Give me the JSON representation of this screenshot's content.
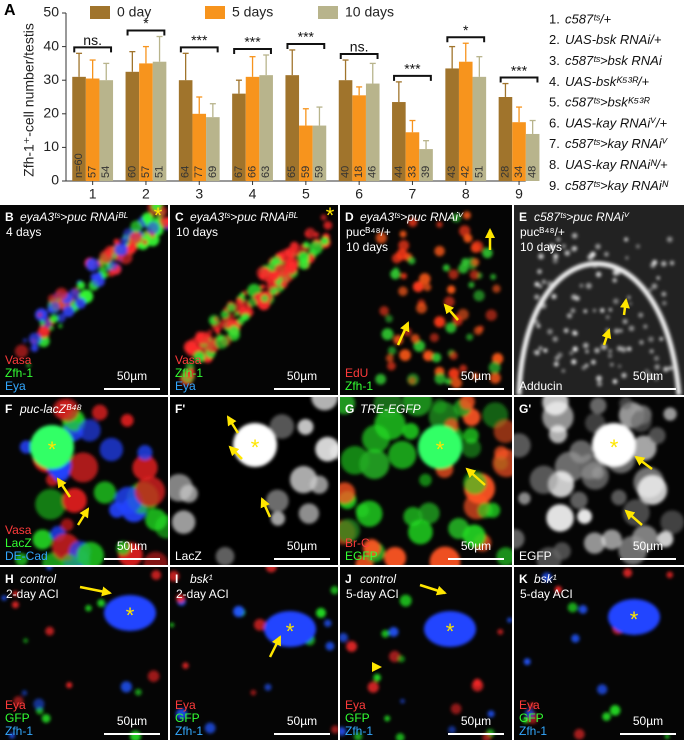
{
  "chart_data": {
    "type": "bar",
    "panel_label": "A",
    "y_label": "Zfh-1⁺-cell number/testis",
    "categories": [
      "1",
      "2",
      "3",
      "4",
      "5",
      "6",
      "7",
      "8",
      "9"
    ],
    "series": [
      {
        "name": "0 day",
        "color": "#a0742c",
        "values": [
          31,
          32.5,
          30,
          26,
          31.5,
          30,
          23.5,
          33.5,
          25
        ],
        "errors": [
          7,
          6,
          8,
          4,
          7.5,
          6,
          6,
          6.5,
          4
        ],
        "n_labels": [
          "n=60",
          "60",
          "64",
          "67",
          "65",
          "40",
          "44",
          "43",
          "28"
        ]
      },
      {
        "name": "5 days",
        "color": "#f7941d",
        "values": [
          30.5,
          35,
          20,
          31,
          16.5,
          25.5,
          14.5,
          35.5,
          17.5
        ],
        "errors": [
          5.5,
          5,
          5,
          6,
          5,
          2.5,
          3.5,
          5.5,
          4.5
        ],
        "n_labels": [
          "57",
          "57",
          "77",
          "66",
          "59",
          "18",
          "33",
          "42",
          "34"
        ]
      },
      {
        "name": "10 days",
        "color": "#b8b48c",
        "values": [
          30,
          35.5,
          19,
          31.5,
          16.5,
          29,
          9.5,
          31,
          14
        ],
        "errors": [
          5,
          7.5,
          4,
          6,
          5.5,
          6,
          2.5,
          6,
          4
        ],
        "n_labels": [
          "54",
          "51",
          "69",
          "63",
          "59",
          "46",
          "39",
          "51",
          "48"
        ]
      }
    ],
    "significance": [
      "ns.",
      "*",
      "***",
      "***",
      "***",
      "ns.",
      "***",
      "*",
      "***"
    ],
    "ylim": [
      0,
      50
    ],
    "yticks": [
      0,
      10,
      20,
      30,
      40,
      50
    ],
    "genotypes": [
      {
        "number": "1.",
        "label": "c587ᵗˢ/+"
      },
      {
        "number": "2.",
        "label": "UAS-bsk RNAi/+"
      },
      {
        "number": "3.",
        "label": "c587ᵗˢ>bsk RNAi"
      },
      {
        "number": "4.",
        "label": "UAS-bskᴷ⁵³ᴿ/+"
      },
      {
        "number": "5.",
        "label": "c587ᵗˢ>bskᴷ⁵³ᴿ"
      },
      {
        "number": "6.",
        "label": "UAS-kay RNAiⱽ/+"
      },
      {
        "number": "7.",
        "label": "c587ᵗˢ>kay RNAiⱽ"
      },
      {
        "number": "8.",
        "label": "UAS-kay RNAiᴺ/+"
      },
      {
        "number": "9.",
        "label": "c587ᵗˢ>kay RNAiᴺ"
      }
    ]
  },
  "panels": [
    {
      "label": "B",
      "lines": [
        "eyaA3ᵗˢ>puc RNAiᴮᴸ",
        "4 days"
      ],
      "marker": "*",
      "stains": [
        {
          "text": "Vasa",
          "color": "#ff3b3b"
        },
        {
          "text": "Zfh-1",
          "color": "#33ff33"
        },
        {
          "text": "Eya",
          "color": "#33a8ff"
        }
      ],
      "scale": "50µm"
    },
    {
      "label": "C",
      "lines": [
        "eyaA3ᵗˢ>puc RNAiᴮᴸ",
        "10 days"
      ],
      "marker": "*",
      "stains": [
        {
          "text": "Vasa",
          "color": "#ff3b3b"
        },
        {
          "text": "Zfh-1",
          "color": "#33ff33"
        },
        {
          "text": "Eya",
          "color": "#33a8ff"
        }
      ],
      "scale": "50µm"
    },
    {
      "label": "D",
      "lines": [
        "eyaA3ᵗˢ>puc RNAiⱽ",
        "pucᴮ⁴⁸/+",
        "10 days"
      ],
      "stains": [
        {
          "text": "EdU",
          "color": "#ff3b3b"
        },
        {
          "text": "Zfh-1",
          "color": "#33ff33"
        }
      ],
      "scale": "50µm"
    },
    {
      "label": "E",
      "lines": [
        "c587ᵗˢ>puc RNAiⱽ",
        "pucᴮ⁴⁸/+",
        "10 days"
      ],
      "stains": [
        {
          "text": "Adducin",
          "color": "#ffffff"
        }
      ],
      "scale": "50µm"
    },
    {
      "label": "F",
      "lines": [
        "puc-lacZᴮ⁴⁸"
      ],
      "marker": "*",
      "stains": [
        {
          "text": "Vasa",
          "color": "#ff3b3b"
        },
        {
          "text": "LacZ",
          "color": "#33ff33"
        },
        {
          "text": "DE-Cad",
          "color": "#33a8ff"
        }
      ],
      "scale": "50µm"
    },
    {
      "label": "F'",
      "lines": [],
      "marker": "*",
      "stains": [
        {
          "text": "LacZ",
          "color": "#ffffff"
        }
      ],
      "scale": "50µm"
    },
    {
      "label": "G",
      "lines": [
        "TRE-EGFP"
      ],
      "marker": "*",
      "stains": [
        {
          "text": "Br-C",
          "color": "#ff3b3b"
        },
        {
          "text": "EGFP",
          "color": "#33ff33"
        }
      ],
      "scale": "50µm"
    },
    {
      "label": "G'",
      "lines": [],
      "marker": "*",
      "stains": [
        {
          "text": "EGFP",
          "color": "#ffffff"
        }
      ],
      "scale": "50µm"
    },
    {
      "label": "H",
      "lines": [
        "control",
        "2-day ACI"
      ],
      "marker": "*",
      "stains": [
        {
          "text": "Eya",
          "color": "#ff3b3b"
        },
        {
          "text": "GFP",
          "color": "#33ff33"
        },
        {
          "text": "Zfh-1",
          "color": "#33a8ff"
        }
      ],
      "scale": "50µm"
    },
    {
      "label": "I",
      "lines": [
        "bsk¹",
        "2-day ACI"
      ],
      "marker": "*",
      "stains": [
        {
          "text": "Eya",
          "color": "#ff3b3b"
        },
        {
          "text": "GFP",
          "color": "#33ff33"
        },
        {
          "text": "Zfh-1",
          "color": "#33a8ff"
        }
      ],
      "scale": "50µm"
    },
    {
      "label": "J",
      "lines": [
        "control",
        "5-day ACI"
      ],
      "marker": "*",
      "stains": [
        {
          "text": "Eya",
          "color": "#ff3b3b"
        },
        {
          "text": "GFP",
          "color": "#33ff33"
        },
        {
          "text": "Zfh-1",
          "color": "#33a8ff"
        }
      ],
      "scale": "50µm"
    },
    {
      "label": "K",
      "lines": [
        "bsk¹",
        "5-day ACI"
      ],
      "marker": "*",
      "stains": [
        {
          "text": "Eya",
          "color": "#ff3b3b"
        },
        {
          "text": "GFP",
          "color": "#33ff33"
        },
        {
          "text": "Zfh-1",
          "color": "#33a8ff"
        }
      ],
      "scale": "50µm"
    }
  ]
}
